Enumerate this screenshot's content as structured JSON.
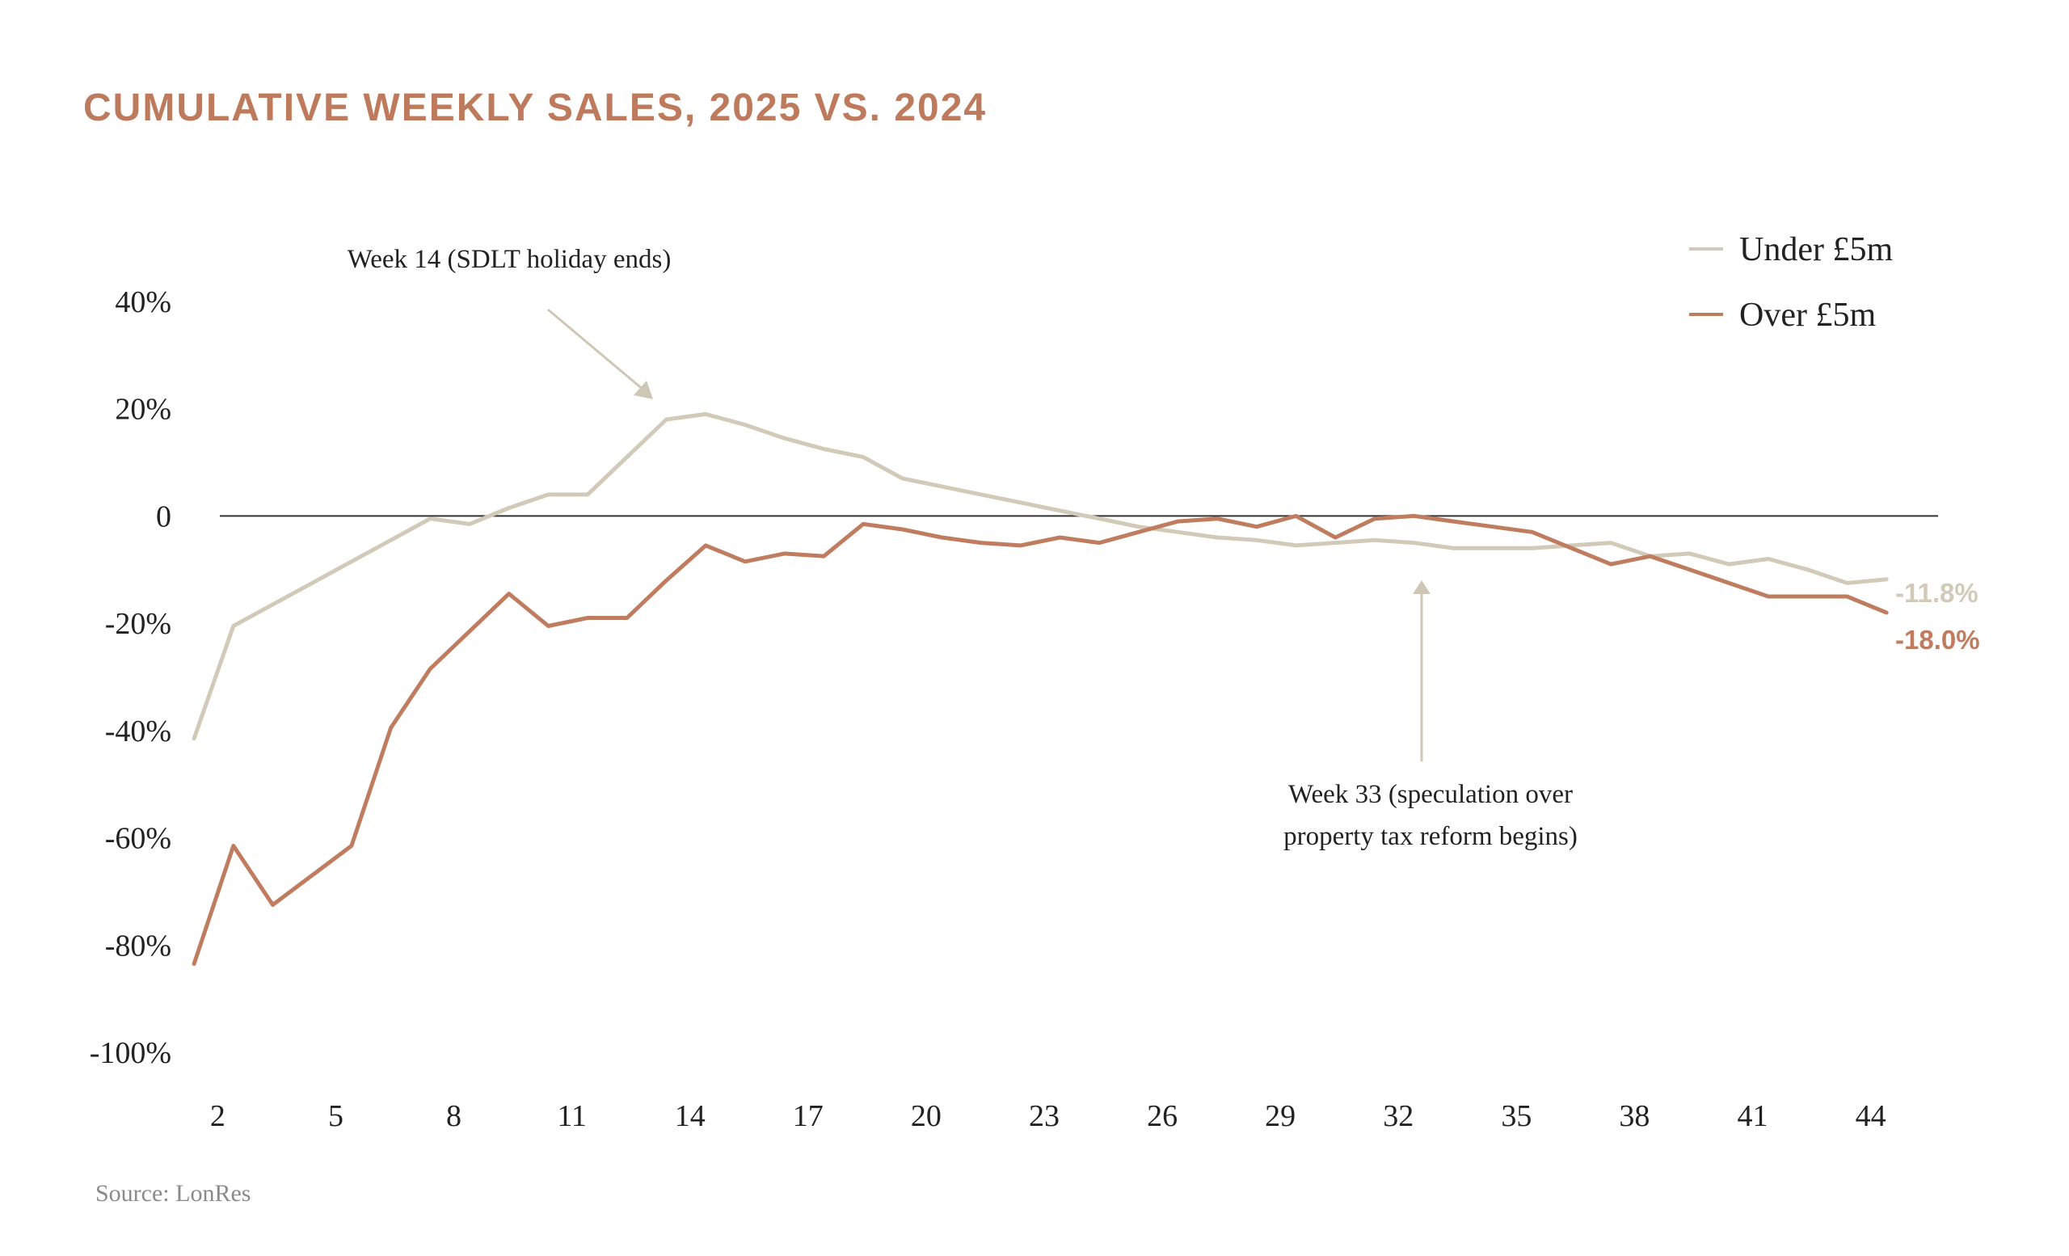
{
  "chart_data": {
    "type": "line",
    "title": "CUMULATIVE WEEKLY SALES, 2025 VS. 2024",
    "source": "Source: LonRes",
    "xlabel": "",
    "ylabel": "",
    "ylim": [
      -100,
      40
    ],
    "xlim": [
      1.5,
      46
    ],
    "x_ticks": [
      2,
      5,
      8,
      11,
      14,
      17,
      20,
      23,
      26,
      29,
      32,
      35,
      38,
      41,
      44
    ],
    "y_ticks": [
      40,
      20,
      0,
      -20,
      -40,
      -60,
      -80,
      -100
    ],
    "y_tick_labels": [
      "40%",
      "20%",
      "0",
      "-20%",
      "-40%",
      "-60%",
      "-80%",
      "-100%"
    ],
    "grid": false,
    "legend_position": "top-right",
    "series": [
      {
        "name": "Under £5m",
        "color": "#d2cab8",
        "end_label": "-11.8%",
        "x": [
          1.4,
          2.4,
          3.4,
          4.4,
          5.4,
          6.4,
          7.4,
          8.4,
          9.4,
          10.4,
          11.4,
          12.4,
          13.4,
          14.4,
          15.4,
          16.4,
          17.4,
          18.4,
          19.4,
          20.4,
          21.4,
          22.4,
          23.4,
          24.4,
          25.4,
          26.4,
          27.4,
          28.4,
          29.4,
          30.4,
          31.4,
          32.4,
          33.4,
          34.4,
          35.4,
          36.4,
          37.4,
          38.4,
          39.4,
          40.4,
          41.4,
          42.4,
          43.4,
          44.4
        ],
        "values": [
          -41.5,
          -20.5,
          -16.5,
          -12.5,
          -8.5,
          -4.5,
          -0.5,
          -1.5,
          1.5,
          4,
          4,
          11,
          18,
          19,
          17,
          14.5,
          12.5,
          11,
          7,
          5.5,
          4,
          2.5,
          1,
          -0.5,
          -2,
          -3,
          -4,
          -4.5,
          -5.5,
          -5,
          -4.5,
          -5,
          -6,
          -6,
          -6,
          -5.5,
          -5,
          -7.5,
          -7,
          -9,
          -8,
          -10,
          -12.5,
          -11.8
        ]
      },
      {
        "name": "Over £5m",
        "color": "#c07c5f",
        "end_label": "-18.0%",
        "x": [
          1.4,
          2.4,
          3.4,
          4.4,
          5.4,
          6.4,
          7.4,
          8.4,
          9.4,
          10.4,
          11.4,
          12.4,
          13.4,
          14.4,
          15.4,
          16.4,
          17.4,
          18.4,
          19.4,
          20.4,
          21.4,
          22.4,
          23.4,
          24.4,
          25.4,
          26.4,
          27.4,
          28.4,
          29.4,
          30.4,
          31.4,
          32.4,
          33.4,
          34.4,
          35.4,
          36.4,
          37.4,
          38.4,
          39.4,
          40.4,
          41.4,
          42.4,
          43.4,
          44.4
        ],
        "values": [
          -83.5,
          -61.5,
          -72.5,
          -67,
          -61.5,
          -39.5,
          -28.5,
          -21.5,
          -14.5,
          -20.5,
          -19,
          -19,
          -12,
          -5.5,
          -8.5,
          -7,
          -7.5,
          -1.5,
          -2.5,
          -4,
          -5,
          -5.5,
          -4,
          -5,
          -3,
          -1,
          -0.5,
          -2,
          0,
          -4,
          -0.5,
          0,
          -1,
          -2,
          -3,
          -6,
          -9,
          -7.5,
          -10,
          -12.5,
          -15,
          -15,
          -15,
          -18
        ]
      }
    ],
    "annotations": [
      {
        "lines": [
          "Week 14 (SDLT holiday ends)"
        ]
      },
      {
        "lines": [
          "Week 33 (speculation over",
          "property tax reform begins)"
        ]
      }
    ]
  }
}
